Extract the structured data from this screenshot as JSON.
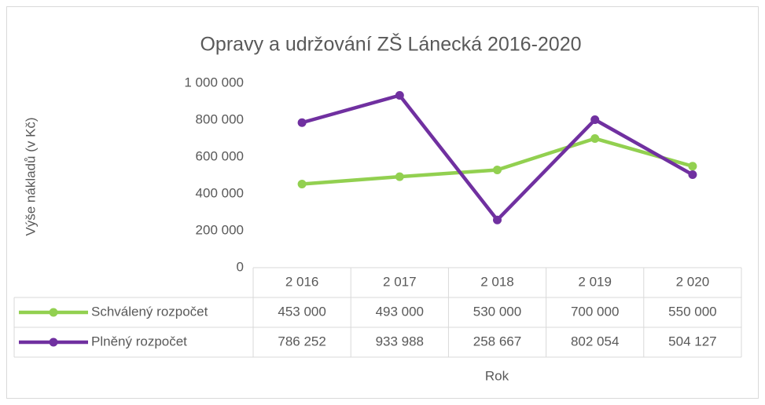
{
  "chart_data": {
    "type": "line",
    "title": "Opravy a udržování ZŠ Lánecká 2016-2020",
    "x_label": "Rok",
    "y_label": "Výše nákladů (v Kč)",
    "categories": [
      "2 016",
      "2 017",
      "2 018",
      "2 019",
      "2 020"
    ],
    "series": [
      {
        "name": "Schválený rozpočet",
        "color": "#92d050",
        "values": [
          453000,
          493000,
          530000,
          700000,
          550000
        ],
        "value_labels": [
          "453 000",
          "493 000",
          "530 000",
          "700 000",
          "550 000"
        ]
      },
      {
        "name": "Plněný rozpočet",
        "color": "#7030a0",
        "values": [
          786252,
          933988,
          258667,
          802054,
          504127
        ],
        "value_labels": [
          "786 252",
          "933 988",
          "258 667",
          "802 054",
          "504 127"
        ]
      }
    ],
    "ylim": [
      0,
      1000000
    ],
    "yticks": [
      0,
      {
        "value": 200000,
        "label": "200 000"
      },
      {
        "value": 400000,
        "label": "400 000"
      },
      {
        "value": 600000,
        "label": "600 000"
      },
      {
        "value": 800000,
        "label": "800 000"
      },
      {
        "value": 1000000,
        "label": "1 000 000"
      }
    ],
    "grid": false,
    "data_table": true
  }
}
